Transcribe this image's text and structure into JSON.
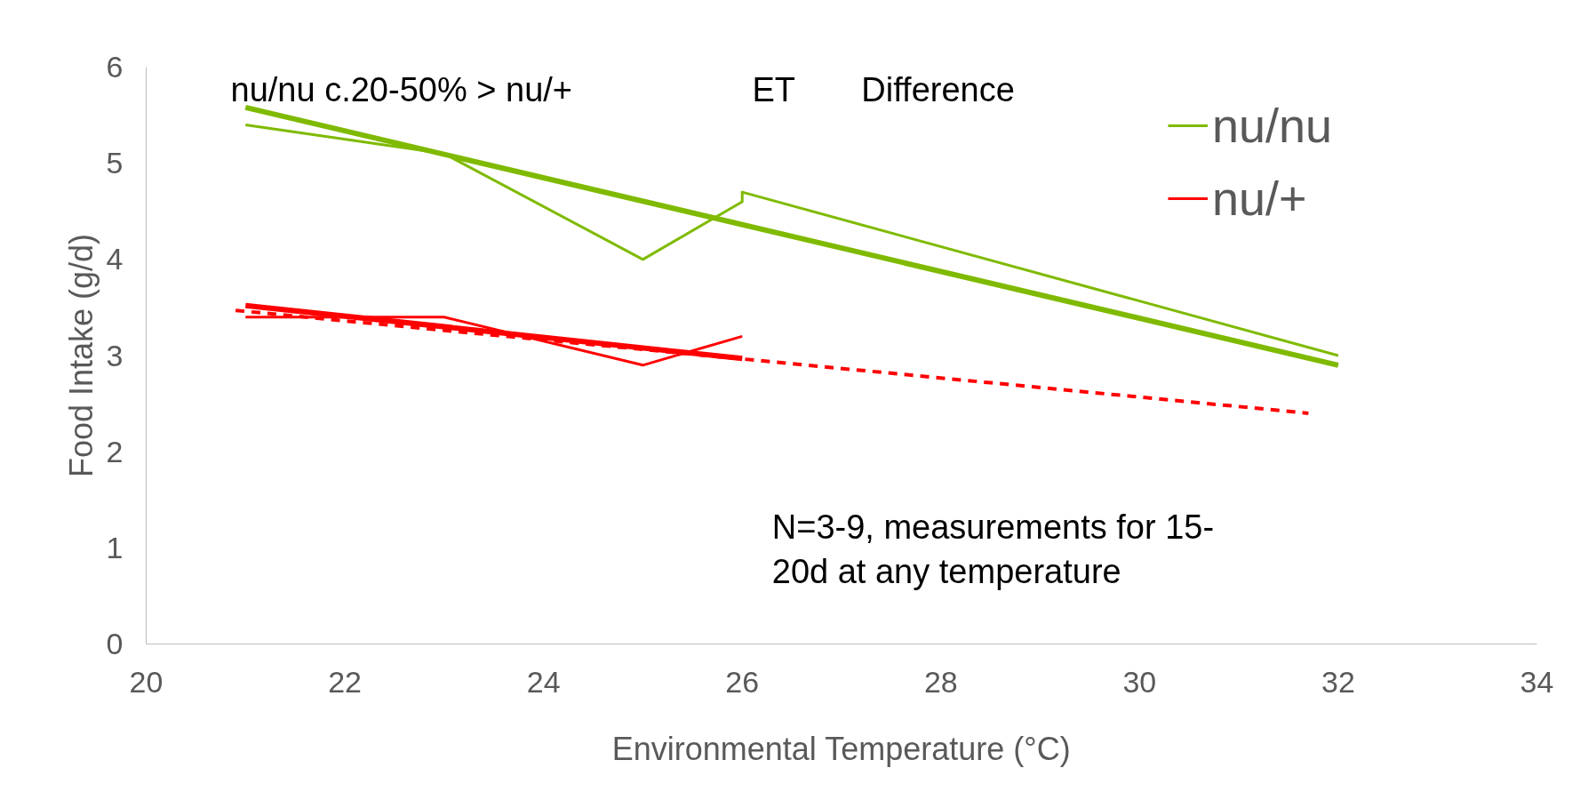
{
  "chart_data": {
    "type": "line",
    "xlabel": "Environmental Temperature (°C)",
    "ylabel": "Food Intake (g/d)",
    "xlim": [
      20,
      34
    ],
    "xticks": [
      20,
      22,
      24,
      26,
      28,
      30,
      32,
      34
    ],
    "ylim": [
      0,
      6
    ],
    "yticks": [
      0,
      1,
      2,
      3,
      4,
      5,
      6
    ],
    "grid": false,
    "legend": "top right",
    "marker": "none",
    "series": [
      {
        "name": "nu/nu",
        "color": "#7fba00",
        "x": [
          21,
          23,
          25,
          26,
          26,
          32
        ],
        "values": [
          5.4,
          5.1,
          4.0,
          4.6,
          4.7,
          3.0
        ]
      },
      {
        "name": "nu/+",
        "color": "#ff0000",
        "x": [
          21,
          23,
          25,
          26
        ],
        "values": [
          3.4,
          3.4,
          2.9,
          3.2
        ]
      },
      {
        "color": "#7fba00",
        "x": [
          21,
          32
        ],
        "values": [
          5.58,
          2.9
        ]
      },
      {
        "color": "#ff0000",
        "x": [
          21,
          26
        ],
        "values": [
          3.52,
          2.97
        ]
      },
      {
        "color": "#ff0000",
        "x": [
          20.9,
          31.7
        ],
        "values": [
          3.47,
          2.4
        ],
        "line_style": "dashed"
      }
    ],
    "annotations": [
      "nu/nu c.20-50% > nu/+",
      "ET",
      "Difference",
      "N=3-9, measurements for 15-\n20d at any temperature"
    ]
  }
}
